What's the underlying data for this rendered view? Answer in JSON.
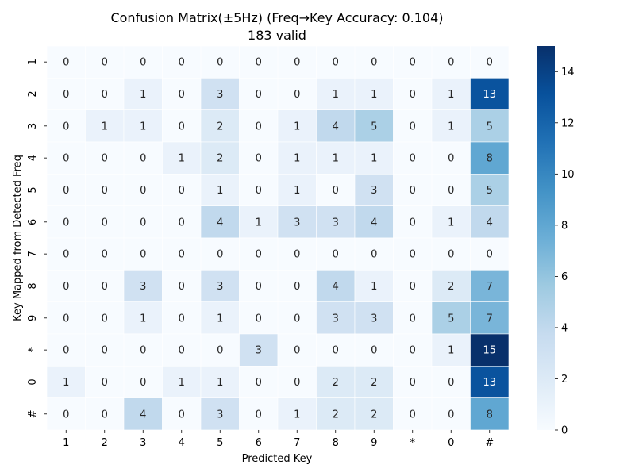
{
  "chart_data": {
    "type": "heatmap",
    "title": "Confusion Matrix(±5Hz) (Freq→Key Accuracy: 0.104)",
    "subtitle": "183 valid",
    "xlabel": "Predicted Key",
    "ylabel": "Key Mapped from Detected Freq",
    "x_categories": [
      "1",
      "2",
      "3",
      "4",
      "5",
      "6",
      "7",
      "8",
      "9",
      "*",
      "0",
      "#"
    ],
    "y_categories": [
      "1",
      "2",
      "3",
      "4",
      "5",
      "6",
      "7",
      "8",
      "9",
      "*",
      "0",
      "#"
    ],
    "values": [
      [
        0,
        0,
        0,
        0,
        0,
        0,
        0,
        0,
        0,
        0,
        0,
        0
      ],
      [
        0,
        0,
        1,
        0,
        3,
        0,
        0,
        1,
        1,
        0,
        1,
        13
      ],
      [
        0,
        1,
        1,
        0,
        2,
        0,
        1,
        4,
        5,
        0,
        1,
        5
      ],
      [
        0,
        0,
        0,
        1,
        2,
        0,
        1,
        1,
        1,
        0,
        0,
        8
      ],
      [
        0,
        0,
        0,
        0,
        1,
        0,
        1,
        0,
        3,
        0,
        0,
        5
      ],
      [
        0,
        0,
        0,
        0,
        4,
        1,
        3,
        3,
        4,
        0,
        1,
        4
      ],
      [
        0,
        0,
        0,
        0,
        0,
        0,
        0,
        0,
        0,
        0,
        0,
        0
      ],
      [
        0,
        0,
        3,
        0,
        3,
        0,
        0,
        4,
        1,
        0,
        2,
        7
      ],
      [
        0,
        0,
        1,
        0,
        1,
        0,
        0,
        3,
        3,
        0,
        5,
        7
      ],
      [
        0,
        0,
        0,
        0,
        0,
        3,
        0,
        0,
        0,
        0,
        1,
        15
      ],
      [
        1,
        0,
        0,
        1,
        1,
        0,
        0,
        2,
        2,
        0,
        0,
        13
      ],
      [
        0,
        0,
        4,
        0,
        3,
        0,
        1,
        2,
        2,
        0,
        0,
        8
      ]
    ],
    "colorbar": {
      "min": 0,
      "max": 15,
      "ticks": [
        "0",
        "2",
        "4",
        "6",
        "8",
        "10",
        "12",
        "14"
      ]
    },
    "colormap": "Blues",
    "colors": {
      "low": "#f7fbff",
      "high": "#08306b",
      "grid_line": "#ffffff"
    }
  }
}
